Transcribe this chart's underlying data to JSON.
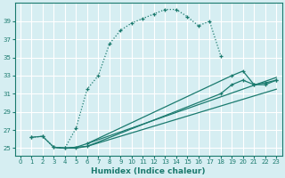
{
  "xlabel": "Humidex (Indice chaleur)",
  "bg_color": "#d6eef2",
  "grid_color": "#ffffff",
  "line_color": "#1a7a6e",
  "xlim": [
    -0.5,
    23.5
  ],
  "ylim": [
    24.2,
    41.0
  ],
  "yticks": [
    25,
    27,
    29,
    31,
    33,
    35,
    37,
    39
  ],
  "xticks": [
    0,
    1,
    2,
    3,
    4,
    5,
    6,
    7,
    8,
    9,
    10,
    11,
    12,
    13,
    14,
    15,
    16,
    17,
    18,
    19,
    20,
    21,
    22,
    23
  ],
  "line1_x": [
    1,
    2,
    3,
    4,
    5,
    6,
    7,
    8,
    9,
    10,
    11,
    12,
    13,
    14,
    15,
    16,
    17,
    18
  ],
  "line1_y": [
    26.2,
    26.3,
    25.1,
    25.0,
    27.2,
    31.5,
    33.0,
    36.5,
    38.0,
    38.8,
    39.3,
    39.8,
    40.3,
    40.3,
    39.5,
    38.5,
    39.0,
    35.2
  ],
  "line1_dotted": true,
  "line2_x": [
    1,
    2,
    3,
    4,
    5,
    6,
    18,
    19,
    20,
    21,
    22,
    23
  ],
  "line2_y": [
    26.2,
    26.3,
    25.1,
    25.0,
    25.0,
    25.2,
    31.0,
    32.0,
    32.5,
    32.0,
    32.2,
    32.5
  ],
  "line3_x": [
    3,
    4,
    5,
    6,
    23
  ],
  "line3_y": [
    25.1,
    25.0,
    25.1,
    25.2,
    31.5
  ],
  "line4_x": [
    3,
    4,
    5,
    6,
    23
  ],
  "line4_y": [
    25.1,
    25.0,
    25.1,
    25.5,
    32.8
  ],
  "line5_x": [
    6,
    19,
    20,
    21,
    22,
    23
  ],
  "line5_y": [
    25.5,
    33.0,
    33.5,
    32.0,
    32.0,
    32.5
  ]
}
